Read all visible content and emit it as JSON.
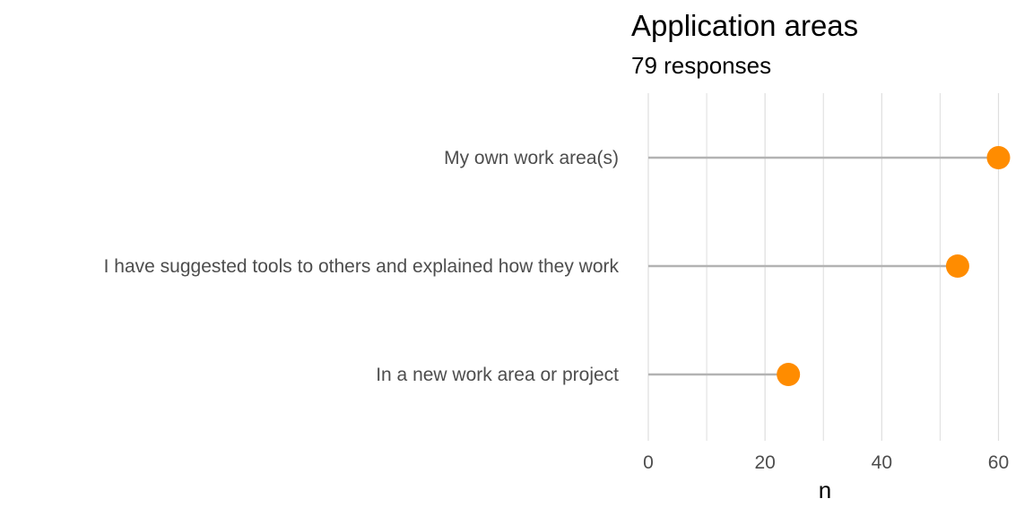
{
  "chart_data": {
    "type": "lollipop",
    "title": "Application areas",
    "subtitle": "79 responses",
    "xlabel": "n",
    "ylabel": "",
    "categories": [
      "My own work area(s)",
      "I have suggested tools to others and explained how they work",
      "In a new work area or project"
    ],
    "values": [
      60,
      53,
      24
    ],
    "xlim": [
      0,
      61
    ],
    "x_ticks": [
      0,
      20,
      40,
      60
    ],
    "x_tick_labels": [
      "0",
      "20",
      "40",
      "60"
    ],
    "minor_gridlines": [
      10,
      30,
      50
    ],
    "grid": true,
    "legend": "none",
    "colors": {
      "point": "#ff8c00",
      "stem": "#b3b3b3",
      "grid": "#dedede"
    }
  }
}
